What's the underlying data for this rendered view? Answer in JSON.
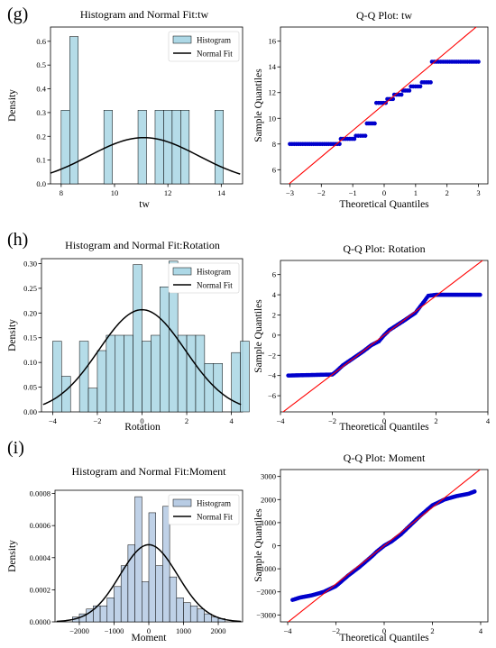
{
  "figure": {
    "colors": {
      "bar_fill": "#add8e6",
      "bar_fill_moment": "#b8cce4",
      "bar_edge": "#000000",
      "normal_fit": "#000000",
      "qq_points": "#0000cc",
      "qq_line": "#ff0000"
    }
  },
  "chart_data": [
    {
      "type": "bar",
      "panel_label": "(g)",
      "title": "Histogram and Normal Fit:tw",
      "xlabel": "tw",
      "ylabel": "Density",
      "xlim": [
        7.6,
        14.8
      ],
      "ylim": [
        0,
        0.66
      ],
      "xticks": [
        8,
        10,
        12,
        14
      ],
      "yticks": [
        0.0,
        0.1,
        0.2,
        0.3,
        0.4,
        0.5,
        0.6
      ],
      "ytick_labels": [
        "0.0",
        "0.1",
        "0.2",
        "0.3",
        "0.4",
        "0.5",
        "0.6"
      ],
      "bins": [
        {
          "x0": 8.0,
          "x1": 8.32,
          "value": 0.31
        },
        {
          "x0": 8.32,
          "x1": 8.64,
          "value": 0.62
        },
        {
          "x0": 9.6,
          "x1": 9.92,
          "value": 0.31
        },
        {
          "x0": 10.88,
          "x1": 11.2,
          "value": 0.31
        },
        {
          "x0": 11.52,
          "x1": 11.84,
          "value": 0.31
        },
        {
          "x0": 11.84,
          "x1": 12.16,
          "value": 0.31
        },
        {
          "x0": 12.16,
          "x1": 12.48,
          "value": 0.31
        },
        {
          "x0": 12.48,
          "x1": 12.8,
          "value": 0.31
        },
        {
          "x0": 13.76,
          "x1": 14.08,
          "value": 0.31
        }
      ],
      "normal_fit": {
        "mean": 11.1,
        "std": 2.05
      },
      "legend": [
        "Histogram",
        "Normal Fit"
      ],
      "legend_loc": "top-right",
      "grid": false
    },
    {
      "type": "scatter",
      "title": "Q-Q Plot: tw",
      "xlabel": "Theoretical Quantiles",
      "ylabel": "Sample Quantiles",
      "xlim": [
        -3.3,
        3.3
      ],
      "ylim": [
        4.9,
        17.1
      ],
      "xticks": [
        -3,
        -2,
        -1,
        0,
        1,
        2,
        3
      ],
      "yticks": [
        6,
        8,
        10,
        12,
        14,
        16
      ],
      "reference_line": {
        "slope": 2.05,
        "intercept": 11.1
      },
      "steps": [
        {
          "x0": -3.0,
          "x1": -1.42,
          "y": 8.0
        },
        {
          "x0": -1.38,
          "x1": -0.95,
          "y": 8.4
        },
        {
          "x0": -0.9,
          "x1": -0.6,
          "y": 8.64
        },
        {
          "x0": -0.55,
          "x1": -0.3,
          "y": 9.6
        },
        {
          "x0": -0.25,
          "x1": 0.05,
          "y": 11.2
        },
        {
          "x0": 0.1,
          "x1": 0.28,
          "y": 11.5
        },
        {
          "x0": 0.32,
          "x1": 0.55,
          "y": 11.84
        },
        {
          "x0": 0.6,
          "x1": 0.8,
          "y": 12.16
        },
        {
          "x0": 0.85,
          "x1": 1.15,
          "y": 12.48
        },
        {
          "x0": 1.2,
          "x1": 1.48,
          "y": 12.8
        },
        {
          "x0": 1.52,
          "x1": 3.0,
          "y": 14.4
        }
      ],
      "grid": false
    },
    {
      "type": "bar",
      "panel_label": "(h)",
      "title": "Histogram and Normal Fit:Rotation",
      "xlabel": "Rotation",
      "ylabel": "Density",
      "xlim": [
        -4.5,
        4.5
      ],
      "ylim": [
        0,
        0.31
      ],
      "xticks": [
        -4,
        -2,
        0,
        2,
        4
      ],
      "yticks": [
        0.0,
        0.05,
        0.1,
        0.15,
        0.2,
        0.25,
        0.3
      ],
      "ytick_labels": [
        "0.00",
        "0.05",
        "0.10",
        "0.15",
        "0.20",
        "0.25",
        "0.30"
      ],
      "bin_start": -4.0,
      "bin_width": 0.4,
      "values": [
        0.143,
        0.072,
        0.0,
        0.143,
        0.048,
        0.124,
        0.155,
        0.155,
        0.155,
        0.298,
        0.143,
        0.155,
        0.253,
        0.305,
        0.155,
        0.155,
        0.155,
        0.098,
        0.098,
        0.0,
        0.12,
        0.143
      ],
      "normal_fit": {
        "mean": 0.0,
        "std": 1.93
      },
      "legend": [
        "Histogram",
        "Normal Fit"
      ],
      "legend_loc": "top-right",
      "grid": false
    },
    {
      "type": "scatter",
      "title": "Q-Q Plot: Rotation",
      "xlabel": "Theoretical Quantiles",
      "ylabel": "Sample Quantiles",
      "xlim": [
        -4.0,
        4.0
      ],
      "ylim": [
        -7.6,
        7.4
      ],
      "xticks": [
        -4,
        -2,
        0,
        2,
        4
      ],
      "yticks": [
        -6,
        -4,
        -2,
        0,
        2,
        4,
        6
      ],
      "reference_line": {
        "slope": 1.95,
        "intercept": 0.0
      },
      "curve": [
        [
          -3.7,
          -4.0
        ],
        [
          -2.0,
          -3.9
        ],
        [
          -1.85,
          -3.6
        ],
        [
          -1.6,
          -3.0
        ],
        [
          -1.2,
          -2.3
        ],
        [
          -0.8,
          -1.6
        ],
        [
          -0.5,
          -1.0
        ],
        [
          -0.2,
          -0.6
        ],
        [
          0.0,
          0.0
        ],
        [
          0.2,
          0.5
        ],
        [
          0.5,
          1.0
        ],
        [
          0.8,
          1.5
        ],
        [
          1.2,
          2.2
        ],
        [
          1.5,
          3.2
        ],
        [
          1.7,
          3.9
        ],
        [
          2.0,
          4.0
        ],
        [
          3.7,
          4.0
        ]
      ],
      "grid": false
    },
    {
      "type": "bar",
      "panel_label": "(i)",
      "title": "Histogram and Normal Fit:Moment",
      "xlabel": "Moment",
      "ylabel": "Density",
      "xlim": [
        -2700,
        2700
      ],
      "ylim": [
        0,
        0.00082
      ],
      "xticks": [
        -2000,
        -1000,
        0,
        1000,
        2000
      ],
      "yticks": [
        0.0,
        0.0002,
        0.0004,
        0.0006,
        0.0008
      ],
      "ytick_labels": [
        "0.0000",
        "0.0002",
        "0.0004",
        "0.0006",
        "0.0008"
      ],
      "bin_start": -2200,
      "bin_width": 200,
      "values": [
        3e-05,
        5e-05,
        8e-05,
        0.0001,
        0.0001,
        0.00015,
        0.00022,
        0.00035,
        0.00048,
        0.00078,
        0.00025,
        0.00068,
        0.00035,
        0.00072,
        0.00028,
        0.00015,
        0.00012,
        0.0001,
        8e-05,
        5e-05,
        3e-05,
        2e-05
      ],
      "normal_fit": {
        "mean": 0.0,
        "std": 830
      },
      "legend": [
        "Histogram",
        "Normal Fit"
      ],
      "legend_loc": "top-right",
      "grid": false
    },
    {
      "type": "scatter",
      "title": "Q-Q Plot: Moment",
      "xlabel": "Theoretical Quantiles",
      "ylabel": "Sample Quantiles",
      "xlim": [
        -4.3,
        4.3
      ],
      "ylim": [
        -3300,
        3300
      ],
      "xticks": [
        -4,
        -2,
        0,
        2,
        4
      ],
      "yticks": [
        -3000,
        -2000,
        -1000,
        0,
        1000,
        2000,
        3000
      ],
      "reference_line": {
        "slope": 830,
        "intercept": 0.0
      },
      "curve": [
        [
          -3.8,
          -2350
        ],
        [
          -3.5,
          -2250
        ],
        [
          -3.0,
          -2150
        ],
        [
          -2.5,
          -2000
        ],
        [
          -2.0,
          -1750
        ],
        [
          -1.5,
          -1300
        ],
        [
          -1.0,
          -900
        ],
        [
          -0.5,
          -450
        ],
        [
          -0.3,
          -250
        ],
        [
          0.0,
          0.0
        ],
        [
          0.3,
          180
        ],
        [
          0.7,
          500
        ],
        [
          1.0,
          800
        ],
        [
          1.5,
          1300
        ],
        [
          2.0,
          1750
        ],
        [
          2.5,
          2000
        ],
        [
          3.0,
          2150
        ],
        [
          3.5,
          2250
        ],
        [
          3.75,
          2350
        ]
      ],
      "grid": false
    }
  ]
}
